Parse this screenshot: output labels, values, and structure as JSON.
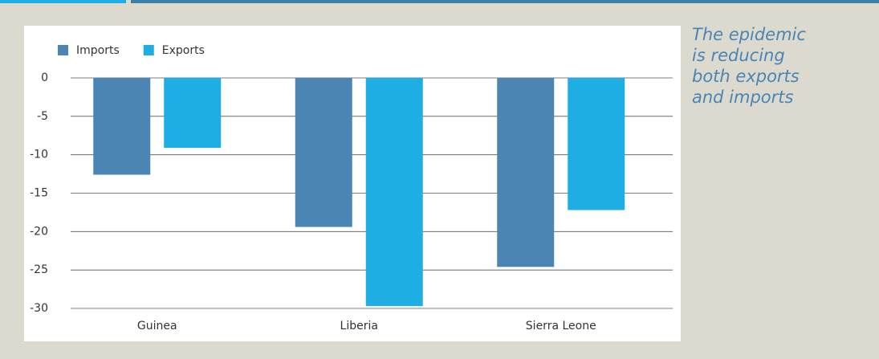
{
  "chart_data": {
    "type": "bar",
    "categories": [
      "Guinea",
      "Liberia",
      "Sierra Leone"
    ],
    "series": [
      {
        "name": "Imports",
        "color": "#4a85b3",
        "values": [
          -12.6,
          -19.4,
          -24.6
        ]
      },
      {
        "name": "Exports",
        "color": "#1faee3",
        "values": [
          -9.1,
          -29.7,
          -17.2
        ]
      }
    ],
    "ylim": [
      -30,
      0
    ],
    "yticks": [
      0,
      -5,
      -10,
      -15,
      -20,
      -25,
      -30
    ],
    "grid": true,
    "legend": "top-left",
    "annotation": [
      "The epidemic",
      "is reducing",
      "both exports",
      "and imports"
    ]
  }
}
